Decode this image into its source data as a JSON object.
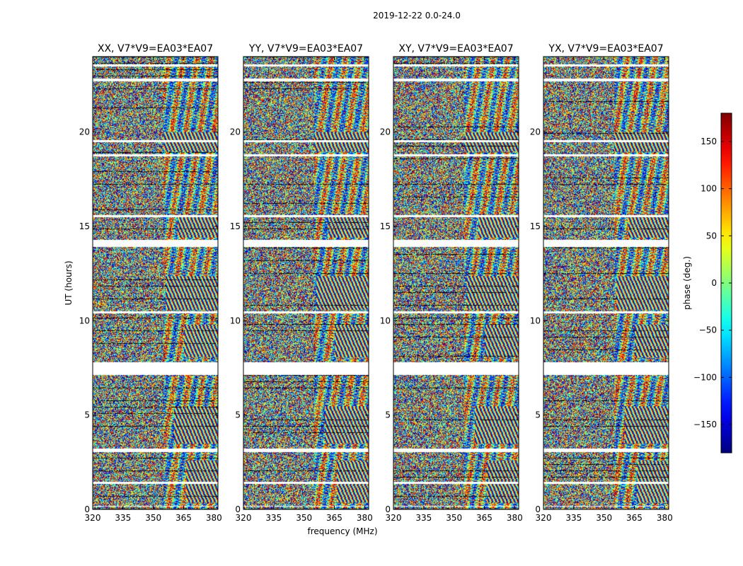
{
  "chart_data": {
    "type": "heatmap",
    "suptitle": "2019-12-22 0.0-24.0",
    "xlabel": "frequency (MHz)",
    "ylabel": "UT (hours)",
    "xlim": [
      320,
      382
    ],
    "ylim": [
      0,
      24
    ],
    "xticks": [
      320,
      335,
      350,
      365,
      380
    ],
    "xtick_labels": [
      "320",
      "335",
      "350",
      "365",
      "380"
    ],
    "yticks": [
      0,
      5,
      10,
      15,
      20
    ],
    "ytick_labels": [
      "0",
      "5",
      "10",
      "15",
      "20"
    ],
    "panels": [
      {
        "title": "XX, V7*V9=EA03*EA07",
        "seed": 11
      },
      {
        "title": "YY, V7*V9=EA03*EA07",
        "seed": 23
      },
      {
        "title": "XY, V7*V9=EA03*EA07",
        "seed": 37
      },
      {
        "title": "YX, V7*V9=EA03*EA07",
        "seed": 53
      }
    ],
    "colorbar": {
      "label": "phase (deg.)",
      "range": [
        -180,
        180
      ],
      "ticks": [
        -150,
        -100,
        -50,
        0,
        50,
        100,
        150
      ],
      "tick_labels": [
        "−150",
        "−100",
        "−50",
        "0",
        "50",
        "100",
        "150"
      ],
      "colormap": "jet"
    },
    "flagged_time_ranges_hours": [
      [
        7.15,
        7.8
      ],
      [
        3.05,
        3.25
      ],
      [
        1.38,
        1.48
      ],
      [
        10.4,
        10.52
      ],
      [
        13.95,
        14.3
      ],
      [
        15.5,
        15.62
      ],
      [
        18.75,
        18.85
      ],
      [
        19.48,
        19.6
      ],
      [
        22.7,
        22.85
      ],
      [
        23.5,
        23.6
      ],
      [
        0.15,
        0.22
      ]
    ],
    "fringe_regions": [
      {
        "t_start": 19.0,
        "t_end": 20.0,
        "f_start": 355
      },
      {
        "t_start": 10.6,
        "t_end": 12.4,
        "f_start": 356
      },
      {
        "t_start": 3.5,
        "t_end": 5.5,
        "f_start": 360
      },
      {
        "t_start": 14.4,
        "t_end": 15.6,
        "f_start": 362
      },
      {
        "t_start": 8.1,
        "t_end": 9.8,
        "f_start": 365
      },
      {
        "t_start": 0.4,
        "t_end": 2.6,
        "f_start": 366
      }
    ]
  }
}
